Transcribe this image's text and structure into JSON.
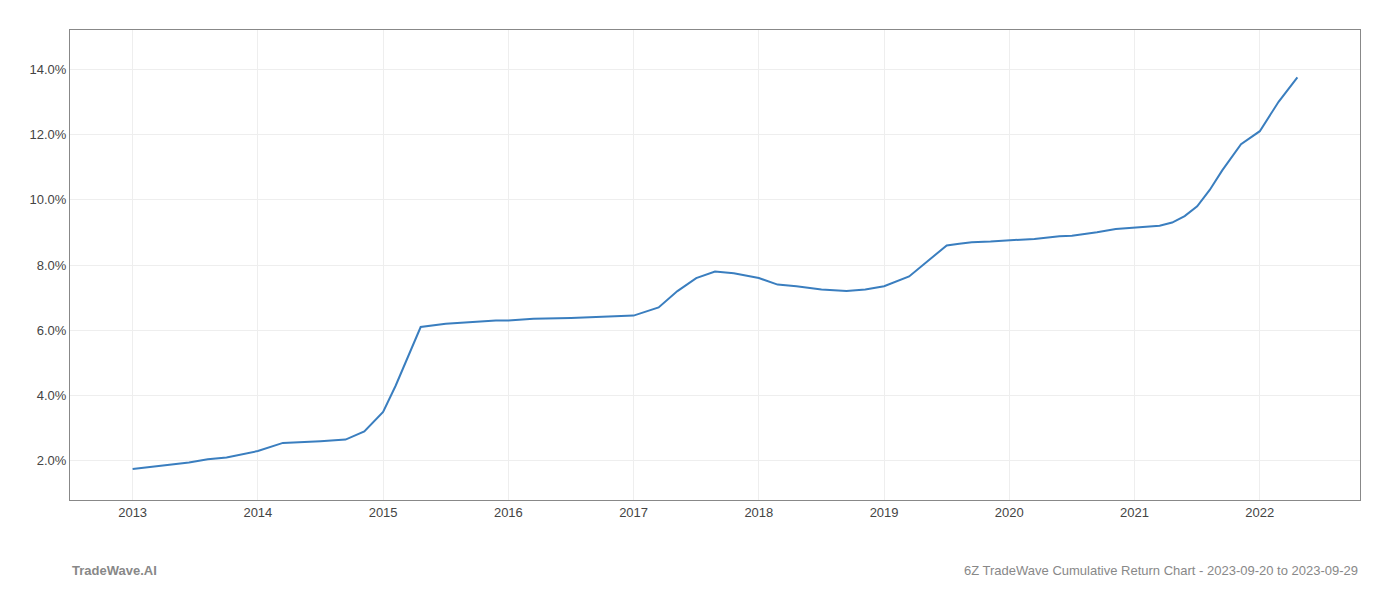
{
  "chart_data": {
    "type": "line",
    "x": [
      2013.0,
      2013.15,
      2013.3,
      2013.45,
      2013.6,
      2013.75,
      2014.0,
      2014.2,
      2014.5,
      2014.7,
      2014.85,
      2015.0,
      2015.1,
      2015.2,
      2015.3,
      2015.5,
      2015.7,
      2015.9,
      2016.0,
      2016.2,
      2016.5,
      2016.7,
      2016.8,
      2017.0,
      2017.2,
      2017.35,
      2017.5,
      2017.65,
      2017.8,
      2018.0,
      2018.15,
      2018.3,
      2018.5,
      2018.7,
      2018.85,
      2019.0,
      2019.2,
      2019.4,
      2019.5,
      2019.6,
      2019.7,
      2019.85,
      2020.0,
      2020.2,
      2020.4,
      2020.5,
      2020.6,
      2020.7,
      2020.85,
      2021.0,
      2021.2,
      2021.3,
      2021.4,
      2021.5,
      2021.6,
      2021.7,
      2021.85,
      2022.0,
      2022.15,
      2022.3
    ],
    "values": [
      1.75,
      1.82,
      1.88,
      1.95,
      2.05,
      2.1,
      2.3,
      2.55,
      2.6,
      2.65,
      2.9,
      3.5,
      4.3,
      5.2,
      6.1,
      6.2,
      6.25,
      6.3,
      6.3,
      6.35,
      6.38,
      6.4,
      6.42,
      6.45,
      6.7,
      7.2,
      7.6,
      7.8,
      7.75,
      7.6,
      7.4,
      7.35,
      7.25,
      7.2,
      7.25,
      7.35,
      7.65,
      8.3,
      8.6,
      8.65,
      8.7,
      8.72,
      8.75,
      8.8,
      8.88,
      8.9,
      8.95,
      9.0,
      9.1,
      9.15,
      9.2,
      9.3,
      9.5,
      9.8,
      10.3,
      10.9,
      11.7,
      12.1,
      13.0,
      13.75
    ],
    "color": "#3a7ebf",
    "xlim": [
      2012.5,
      2022.8
    ],
    "ylim": [
      0.8,
      15.2
    ],
    "xticks": [
      2013,
      2014,
      2015,
      2016,
      2017,
      2018,
      2019,
      2020,
      2021,
      2022
    ],
    "yticks": [
      {
        "value": 2.0,
        "label": "2.0%"
      },
      {
        "value": 4.0,
        "label": "4.0%"
      },
      {
        "value": 6.0,
        "label": "6.0%"
      },
      {
        "value": 8.0,
        "label": "8.0%"
      },
      {
        "value": 10.0,
        "label": "10.0%"
      },
      {
        "value": 12.0,
        "label": "12.0%"
      },
      {
        "value": 14.0,
        "label": "14.0%"
      }
    ],
    "grid": true,
    "annotations": [
      "TradeWave.AI",
      "6Z TradeWave Cumulative Return Chart - 2023-09-20 to 2023-09-29"
    ]
  }
}
